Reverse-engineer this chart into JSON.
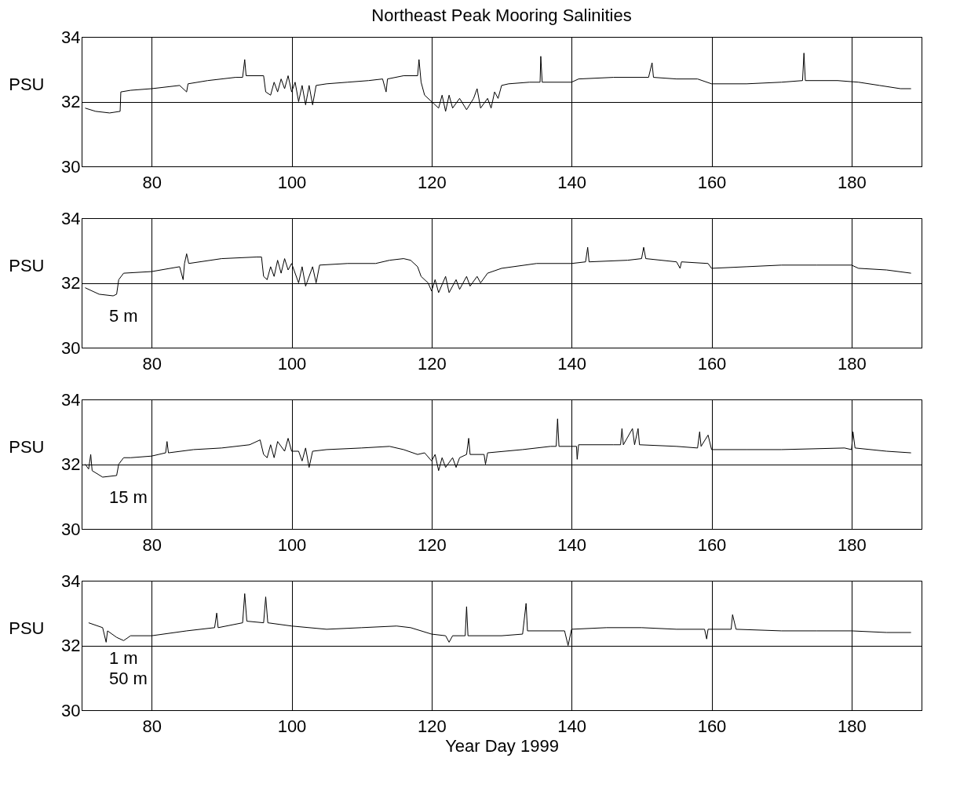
{
  "chart_data": [
    {
      "type": "line",
      "title": "Northeast Peak Mooring Salinities",
      "ylabel": "PSU",
      "xlim": [
        70,
        190
      ],
      "xticks": [
        80,
        100,
        120,
        140,
        160,
        180
      ],
      "ylim": [
        30,
        34
      ],
      "yticks": [
        30,
        32,
        34
      ],
      "grid": true,
      "x": [
        70.5,
        72,
        74,
        75.5,
        75.6,
        77,
        80,
        84,
        85,
        85.2,
        88,
        92,
        93,
        93.3,
        93.5,
        96,
        96.3,
        97,
        97.5,
        98,
        98.5,
        99,
        99.5,
        100,
        100.5,
        101,
        101.5,
        102,
        102.5,
        103,
        103.5,
        105,
        108,
        111,
        113,
        113.5,
        113.7,
        116,
        118,
        118.2,
        118.5,
        119,
        120,
        121,
        121.5,
        122,
        122.5,
        123,
        124,
        125,
        126,
        126.5,
        127,
        128,
        128.5,
        129,
        129.5,
        130,
        131,
        134,
        135.5,
        135.6,
        135.8,
        140,
        141,
        146,
        151,
        151.5,
        151.7,
        155,
        158,
        160,
        165,
        170,
        173,
        173.2,
        173.4,
        178,
        181,
        184,
        187,
        188.5
      ],
      "series": [
        {
          "color": "#000000",
          "values": [
            31.8,
            31.7,
            31.65,
            31.7,
            32.3,
            32.35,
            32.4,
            32.5,
            32.3,
            32.55,
            32.65,
            32.75,
            32.75,
            33.3,
            32.8,
            32.8,
            32.3,
            32.2,
            32.6,
            32.3,
            32.7,
            32.4,
            32.8,
            32.3,
            32.6,
            32.0,
            32.5,
            31.9,
            32.5,
            31.9,
            32.5,
            32.55,
            32.6,
            32.65,
            32.7,
            32.3,
            32.7,
            32.8,
            32.8,
            33.3,
            32.6,
            32.2,
            32.0,
            31.8,
            32.2,
            31.7,
            32.2,
            31.8,
            32.1,
            31.75,
            32.1,
            32.4,
            31.8,
            32.1,
            31.8,
            32.3,
            32.1,
            32.5,
            32.55,
            32.6,
            32.6,
            33.4,
            32.6,
            32.6,
            32.7,
            32.75,
            32.75,
            33.2,
            32.75,
            32.7,
            32.7,
            32.55,
            32.55,
            32.6,
            32.65,
            33.5,
            32.65,
            32.65,
            32.6,
            32.5,
            32.4,
            32.4
          ]
        }
      ]
    },
    {
      "type": "line",
      "ylabel": "PSU",
      "xlim": [
        70,
        190
      ],
      "xticks": [
        80,
        100,
        120,
        140,
        160,
        180
      ],
      "ylim": [
        30,
        34
      ],
      "yticks": [
        30,
        32,
        34
      ],
      "grid": true,
      "annotations": [
        "5 m"
      ],
      "x": [
        70.5,
        72.5,
        74.5,
        75,
        75.3,
        76,
        80,
        84,
        84.5,
        84.7,
        85,
        85.3,
        90,
        95,
        95.7,
        96,
        96.5,
        97,
        97.5,
        98,
        98.5,
        99,
        99.5,
        100,
        101,
        101.5,
        102,
        103,
        103.5,
        104,
        108,
        112,
        114,
        116,
        117,
        118,
        118.5,
        119.5,
        120,
        120.5,
        121,
        122,
        122.5,
        123.5,
        124,
        125,
        125.5,
        126.5,
        127,
        128,
        130,
        135,
        140,
        142,
        142.3,
        142.5,
        148,
        150,
        150.3,
        150.6,
        155,
        155.5,
        155.7,
        159.5,
        160,
        165,
        170,
        175,
        180,
        181,
        185,
        188.5
      ],
      "series": [
        {
          "color": "#000000",
          "values": [
            31.85,
            31.65,
            31.6,
            31.65,
            32.1,
            32.3,
            32.35,
            32.5,
            32.1,
            32.6,
            32.9,
            32.6,
            32.75,
            32.8,
            32.8,
            32.2,
            32.1,
            32.5,
            32.2,
            32.7,
            32.3,
            32.75,
            32.4,
            32.6,
            32.0,
            32.5,
            31.9,
            32.5,
            32.0,
            32.55,
            32.6,
            32.6,
            32.7,
            32.75,
            32.7,
            32.5,
            32.2,
            32.0,
            31.75,
            32.1,
            31.7,
            32.2,
            31.7,
            32.1,
            31.8,
            32.2,
            31.9,
            32.2,
            32.0,
            32.3,
            32.45,
            32.6,
            32.6,
            32.65,
            33.1,
            32.65,
            32.7,
            32.75,
            33.1,
            32.75,
            32.65,
            32.45,
            32.65,
            32.6,
            32.45,
            32.5,
            32.55,
            32.55,
            32.55,
            32.45,
            32.4,
            32.3
          ]
        }
      ]
    },
    {
      "type": "line",
      "ylabel": "PSU",
      "xlim": [
        70,
        190
      ],
      "xticks": [
        80,
        100,
        120,
        140,
        160,
        180
      ],
      "ylim": [
        30,
        34
      ],
      "yticks": [
        30,
        32,
        34
      ],
      "grid": true,
      "annotations": [
        "15 m"
      ],
      "x": [
        70.5,
        71,
        71.3,
        71.5,
        73,
        75,
        75.3,
        76,
        77,
        80,
        82,
        82.2,
        82.4,
        86,
        90,
        94,
        95.5,
        96,
        96.5,
        97,
        97.5,
        98,
        99,
        99.5,
        100,
        101,
        101.5,
        102,
        102.5,
        103,
        105,
        110,
        114,
        116,
        118,
        119,
        120,
        120.5,
        121,
        121.5,
        122,
        123,
        123.5,
        124,
        125,
        125.3,
        125.5,
        127.5,
        127.7,
        128,
        133,
        137,
        137.8,
        138,
        138.2,
        140,
        140.7,
        140.8,
        141,
        146,
        147,
        147.2,
        147.4,
        148.7,
        149,
        149.5,
        149.7,
        155,
        158,
        158.3,
        158.5,
        159.5,
        160,
        165,
        170,
        179,
        180,
        180.2,
        180.5,
        185,
        188.5
      ],
      "series": [
        {
          "color": "#000000",
          "values": [
            32.0,
            31.85,
            32.3,
            31.8,
            31.6,
            31.65,
            32.0,
            32.2,
            32.2,
            32.25,
            32.35,
            32.7,
            32.35,
            32.45,
            32.5,
            32.6,
            32.75,
            32.3,
            32.2,
            32.6,
            32.2,
            32.7,
            32.4,
            32.8,
            32.4,
            32.4,
            32.1,
            32.5,
            31.9,
            32.4,
            32.45,
            32.5,
            32.55,
            32.45,
            32.3,
            32.35,
            32.1,
            32.3,
            31.8,
            32.2,
            31.9,
            32.2,
            31.9,
            32.2,
            32.3,
            32.8,
            32.3,
            32.3,
            32.0,
            32.35,
            32.45,
            32.55,
            32.55,
            33.4,
            32.55,
            32.55,
            32.55,
            32.15,
            32.6,
            32.6,
            32.6,
            33.1,
            32.6,
            33.1,
            32.6,
            33.1,
            32.6,
            32.55,
            32.5,
            33.0,
            32.55,
            32.9,
            32.45,
            32.45,
            32.45,
            32.5,
            32.45,
            33.0,
            32.5,
            32.4,
            32.35
          ]
        }
      ]
    },
    {
      "type": "line",
      "ylabel": "PSU",
      "xlabel": "Year Day 1999",
      "xlim": [
        70,
        190
      ],
      "xticks": [
        80,
        100,
        120,
        140,
        160,
        180
      ],
      "ylim": [
        30,
        34
      ],
      "yticks": [
        30,
        32,
        34
      ],
      "grid": true,
      "annotations": [
        "1 m",
        "50 m"
      ],
      "x": [
        71,
        73,
        73.5,
        73.7,
        75,
        76,
        77,
        80,
        85,
        89,
        89.3,
        89.5,
        93,
        93.3,
        93.6,
        96,
        96.3,
        96.6,
        100,
        105,
        110,
        115,
        117,
        120,
        122,
        122.5,
        123,
        124.8,
        125,
        125.2,
        130,
        133,
        133.5,
        133.7,
        139,
        139.5,
        140,
        145,
        150,
        155,
        159,
        159.3,
        159.5,
        162.8,
        163,
        163.5,
        170,
        175,
        180,
        185,
        188.5
      ],
      "series": [
        {
          "color": "#000000",
          "values": [
            32.7,
            32.55,
            32.1,
            32.45,
            32.25,
            32.15,
            32.3,
            32.3,
            32.45,
            32.55,
            33.0,
            32.55,
            32.7,
            33.6,
            32.75,
            32.7,
            33.5,
            32.7,
            32.6,
            32.5,
            32.55,
            32.6,
            32.55,
            32.35,
            32.3,
            32.1,
            32.3,
            32.3,
            33.2,
            32.3,
            32.3,
            32.35,
            33.3,
            32.45,
            32.45,
            32.0,
            32.5,
            32.55,
            32.55,
            32.5,
            32.5,
            32.2,
            32.5,
            32.5,
            32.95,
            32.5,
            32.45,
            32.45,
            32.45,
            32.4,
            32.4
          ]
        }
      ]
    }
  ]
}
